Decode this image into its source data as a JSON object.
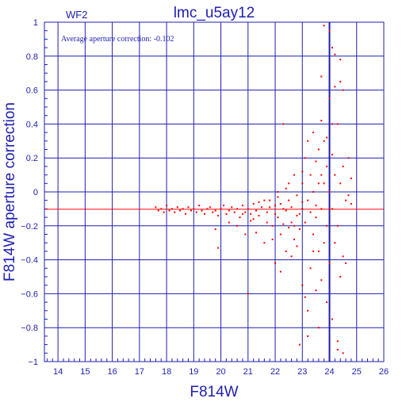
{
  "chart_data": {
    "type": "scatter",
    "title": "lmc_u5ay12",
    "panel_label": "WF2",
    "annotation": "Average aperture correction:  -0.102",
    "xlabel": "F814W",
    "ylabel": "F814W aperture correction",
    "xlim": [
      13.5,
      26
    ],
    "ylim": [
      -1,
      1
    ],
    "x_ticks": [
      14,
      15,
      16,
      17,
      18,
      19,
      20,
      21,
      22,
      23,
      24,
      25,
      26
    ],
    "y_ticks": [
      -1,
      -0.8,
      -0.6,
      -0.4,
      -0.2,
      0,
      0.2,
      0.4,
      0.6,
      0.8,
      1
    ],
    "x_tick_labels": [
      "14",
      "15",
      "16",
      "17",
      "18",
      "19",
      "20",
      "21",
      "22",
      "23",
      "24",
      "25",
      "26"
    ],
    "y_tick_labels": [
      "−1",
      "−0.8",
      "−0.6",
      "−0.4",
      "−0.2",
      "0",
      "0.2",
      "0.4",
      "0.6",
      "0.8",
      "1"
    ],
    "grid": true,
    "reference_line": {
      "y": -0.102,
      "color": "#ff0000"
    },
    "vertical_line": {
      "x": 24,
      "color": "#1f1fb0"
    },
    "point_color": "#ff0000",
    "axis_color": "#1f1fb0",
    "points": [
      [
        17.6,
        -0.09
      ],
      [
        17.7,
        -0.11
      ],
      [
        17.8,
        -0.1
      ],
      [
        17.9,
        -0.12
      ],
      [
        18.0,
        -0.08
      ],
      [
        18.1,
        -0.11
      ],
      [
        18.2,
        -0.1
      ],
      [
        18.3,
        -0.12
      ],
      [
        18.4,
        -0.09
      ],
      [
        18.5,
        -0.11
      ],
      [
        18.6,
        -0.1
      ],
      [
        18.7,
        -0.13
      ],
      [
        18.8,
        -0.09
      ],
      [
        18.9,
        -0.11
      ],
      [
        19.0,
        -0.1
      ],
      [
        19.1,
        -0.12
      ],
      [
        19.2,
        -0.08
      ],
      [
        19.3,
        -0.11
      ],
      [
        19.4,
        -0.13
      ],
      [
        19.5,
        -0.1
      ],
      [
        19.6,
        -0.09
      ],
      [
        19.7,
        -0.12
      ],
      [
        19.8,
        -0.11
      ],
      [
        19.9,
        -0.14
      ],
      [
        20.0,
        -0.1
      ],
      [
        20.1,
        -0.08
      ],
      [
        20.2,
        -0.13
      ],
      [
        20.3,
        -0.11
      ],
      [
        20.4,
        -0.09
      ],
      [
        20.5,
        -0.12
      ],
      [
        20.6,
        -0.1
      ],
      [
        20.7,
        -0.15
      ],
      [
        20.8,
        -0.08
      ],
      [
        20.9,
        -0.12
      ],
      [
        21.0,
        -0.1
      ],
      [
        21.1,
        -0.13
      ],
      [
        21.2,
        -0.07
      ],
      [
        21.3,
        -0.11
      ],
      [
        21.4,
        -0.14
      ],
      [
        21.5,
        -0.09
      ],
      [
        19.8,
        -0.22
      ],
      [
        19.9,
        -0.33
      ],
      [
        20.3,
        -0.18
      ],
      [
        20.6,
        -0.2
      ],
      [
        20.9,
        -0.25
      ],
      [
        21.1,
        -0.17
      ],
      [
        21.3,
        -0.24
      ],
      [
        21.6,
        -0.3
      ],
      [
        21.7,
        -0.12
      ],
      [
        21.8,
        -0.05
      ],
      [
        21.9,
        -0.2
      ],
      [
        22.0,
        -0.08
      ],
      [
        22.1,
        -0.15
      ],
      [
        22.2,
        -0.25
      ],
      [
        22.3,
        -0.1
      ],
      [
        22.4,
        -0.35
      ],
      [
        22.5,
        -0.05
      ],
      [
        22.6,
        -0.18
      ],
      [
        22.7,
        -0.28
      ],
      [
        22.8,
        -0.02
      ],
      [
        22.9,
        -0.13
      ],
      [
        22.0,
        -0.42
      ],
      [
        22.1,
        0.0
      ],
      [
        22.2,
        -0.47
      ],
      [
        22.3,
        0.4
      ],
      [
        22.5,
        0.05
      ],
      [
        22.6,
        -0.38
      ],
      [
        22.7,
        0.1
      ],
      [
        22.8,
        -0.32
      ],
      [
        22.9,
        -0.22
      ],
      [
        23.0,
        -0.1
      ],
      [
        23.0,
        -0.55
      ],
      [
        23.0,
        0.12
      ],
      [
        23.1,
        -0.62
      ],
      [
        23.1,
        0.2
      ],
      [
        23.2,
        -0.7
      ],
      [
        23.2,
        -0.05
      ],
      [
        23.2,
        0.3
      ],
      [
        23.3,
        -0.45
      ],
      [
        23.3,
        0.1
      ],
      [
        23.4,
        -0.25
      ],
      [
        23.4,
        0.0
      ],
      [
        23.4,
        0.35
      ],
      [
        23.5,
        -0.15
      ],
      [
        23.5,
        -0.58
      ],
      [
        23.5,
        0.18
      ],
      [
        23.6,
        -0.35
      ],
      [
        23.6,
        0.25
      ],
      [
        23.6,
        -0.8
      ],
      [
        23.7,
        -0.1
      ],
      [
        23.7,
        0.42
      ],
      [
        23.7,
        -0.52
      ],
      [
        23.8,
        0.05
      ],
      [
        23.8,
        -0.3
      ],
      [
        23.8,
        0.3
      ],
      [
        23.9,
        -0.2
      ],
      [
        23.9,
        0.15
      ],
      [
        23.9,
        -0.65
      ],
      [
        24.0,
        0.0
      ],
      [
        24.0,
        0.55
      ],
      [
        24.0,
        -0.42
      ],
      [
        24.0,
        0.95
      ],
      [
        24.1,
        -0.1
      ],
      [
        24.1,
        0.22
      ],
      [
        24.1,
        -0.75
      ],
      [
        24.1,
        0.85
      ],
      [
        24.2,
        0.1
      ],
      [
        24.2,
        -0.3
      ],
      [
        24.2,
        0.62
      ],
      [
        24.3,
        -0.2
      ],
      [
        24.3,
        0.4
      ],
      [
        24.3,
        -0.88
      ],
      [
        24.4,
        0.05
      ],
      [
        24.4,
        0.65
      ],
      [
        24.4,
        -0.5
      ],
      [
        24.5,
        -0.38
      ],
      [
        24.5,
        0.6
      ],
      [
        24.5,
        0.15
      ],
      [
        24.6,
        -0.42
      ],
      [
        24.6,
        -0.05
      ],
      [
        24.7,
        0.2
      ],
      [
        24.7,
        -0.02
      ],
      [
        24.8,
        0.08
      ],
      [
        24.8,
        -0.07
      ],
      [
        23.8,
        0.98
      ],
      [
        23.7,
        0.68
      ],
      [
        22.9,
        -0.9
      ],
      [
        23.2,
        -0.85
      ],
      [
        24.3,
        -0.93
      ],
      [
        24.5,
        -0.95
      ],
      [
        24.2,
        0.81
      ],
      [
        24.4,
        0.78
      ],
      [
        21.6,
        -0.05
      ],
      [
        21.8,
        -0.09
      ],
      [
        22.0,
        -0.13
      ],
      [
        22.2,
        -0.07
      ],
      [
        22.4,
        -0.11
      ],
      [
        22.6,
        -0.09
      ],
      [
        22.8,
        -0.14
      ],
      [
        23.0,
        -0.06
      ],
      [
        21.4,
        -0.06
      ],
      [
        21.2,
        -0.16
      ],
      [
        20.8,
        -0.13
      ],
      [
        21.7,
        -0.18
      ],
      [
        22.3,
        -0.19
      ],
      [
        22.5,
        -0.21
      ],
      [
        23.1,
        -0.18
      ],
      [
        23.3,
        -0.12
      ],
      [
        23.5,
        -0.08
      ],
      [
        23.7,
        0.1
      ],
      [
        21.9,
        -0.28
      ],
      [
        22.1,
        -0.03
      ],
      [
        22.7,
        -0.2
      ],
      [
        23.0,
        0.05
      ],
      [
        23.6,
        0.05
      ],
      [
        23.9,
        0.32
      ],
      [
        24.1,
        0.4
      ],
      [
        21.0,
        -0.6
      ],
      [
        22.4,
        0.02
      ],
      [
        23.4,
        -0.35
      ]
    ]
  }
}
